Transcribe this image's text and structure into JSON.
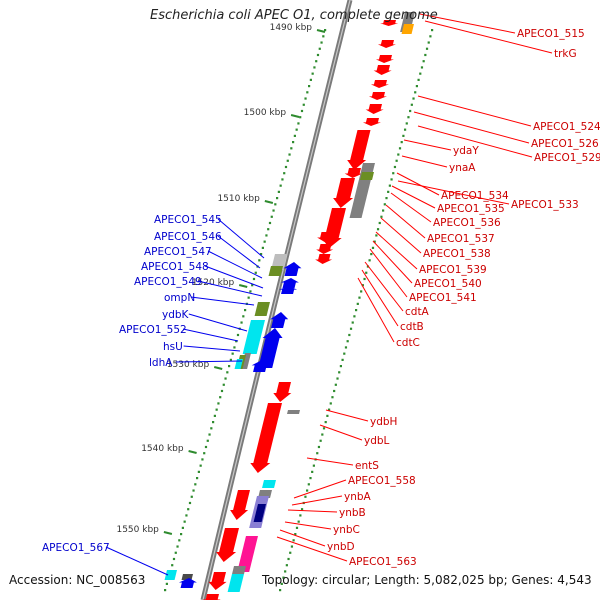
{
  "title": "Escherichia coli APEC O1, complete genome",
  "footer": {
    "accession": "Accession: NC_008563",
    "summary": "Topology: circular; Length: 5,082,025 bp; Genes: 4,543"
  },
  "colors": {
    "backbone": "#7a7a7a",
    "forward_gene": "#0000ee",
    "reverse_gene": "#ff0000",
    "forward_label": "#0000cc",
    "reverse_label": "#cc0000",
    "tick": "#2e8b2e",
    "cyan_feature": "#00e5ee",
    "magenta_feature": "#ff1493",
    "olive_feature": "#6b8e23",
    "gray_feature": "#808080",
    "orange_feature": "#ffa500"
  },
  "scale": {
    "ticks": [
      {
        "label": "1490 kbp"
      },
      {
        "label": "1500 kbp"
      },
      {
        "label": "1510 kbp"
      },
      {
        "label": "1520 kbp"
      },
      {
        "label": "1530 kbp"
      },
      {
        "label": "1540 kbp"
      },
      {
        "label": "1550 kbp"
      }
    ]
  },
  "left_labels": [
    "APECO1_545",
    "APECO1_546",
    "APECO1_547",
    "APECO1_548",
    "APECO1_549",
    "ompN",
    "ydbK",
    "APECO1_552",
    "hsU",
    "ldhA",
    "APECO1_567"
  ],
  "right_labels": [
    "APECO1_515",
    "trkG",
    "APECO1_524",
    "APECO1_526",
    "APECO1_529",
    "ydaY",
    "ynaA",
    "APECO1_534",
    "APECO1_533",
    "APECO1_535",
    "APECO1_536",
    "APECO1_537",
    "APECO1_538",
    "APECO1_539",
    "APECO1_540",
    "APECO1_541",
    "cdtA",
    "cdtB",
    "cdtC",
    "ydbH",
    "ydbL",
    "entS",
    "APECO1_558",
    "ynbA",
    "ynbB",
    "ynbC",
    "ynbD",
    "APECO1_563"
  ]
}
